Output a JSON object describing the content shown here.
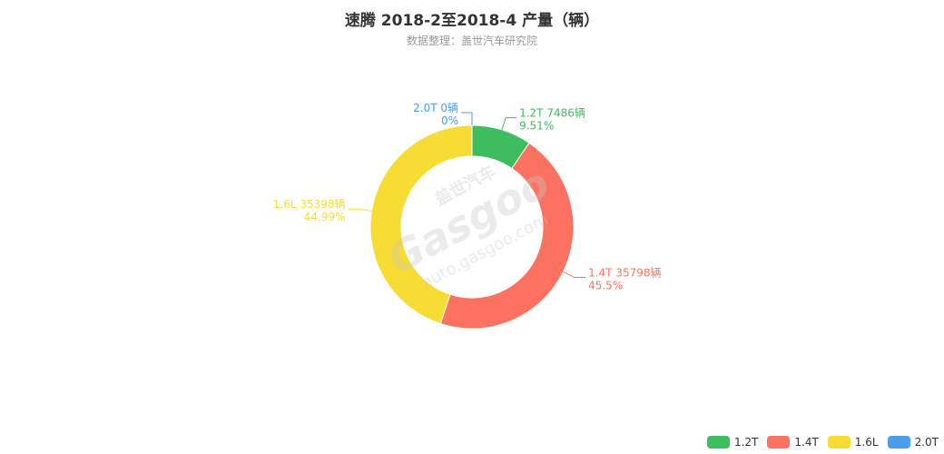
{
  "chart_data": {
    "type": "pie",
    "variant": "donut",
    "title": "速腾 2018-2至2018-4 产量（辆）",
    "subtitle": "数据整理：盖世汽车研究院",
    "unit": "辆",
    "slices": [
      {
        "name": "1.2T",
        "value": 7486,
        "percent": "9.51%",
        "color": "#3dbd5e",
        "label": "1.2T 7486辆",
        "pct_label": "9.51%"
      },
      {
        "name": "1.4T",
        "value": 35798,
        "percent": "45.5%",
        "color": "#fb7360",
        "label": "1.4T 35798辆",
        "pct_label": "45.5%"
      },
      {
        "name": "1.6L",
        "value": 35398,
        "percent": "44.99%",
        "color": "#f7dc33",
        "label": "1.6L 35398辆",
        "pct_label": "44.99%"
      },
      {
        "name": "2.0T",
        "value": 0,
        "percent": "0%",
        "color": "#4a9de8",
        "label": "2.0T 0辆",
        "pct_label": "0%"
      }
    ],
    "legend_position": "bottom-right"
  },
  "watermark": {
    "brand": "盖世汽车",
    "logo": "Gasgoo",
    "url": "auto.gasgoo.com"
  }
}
